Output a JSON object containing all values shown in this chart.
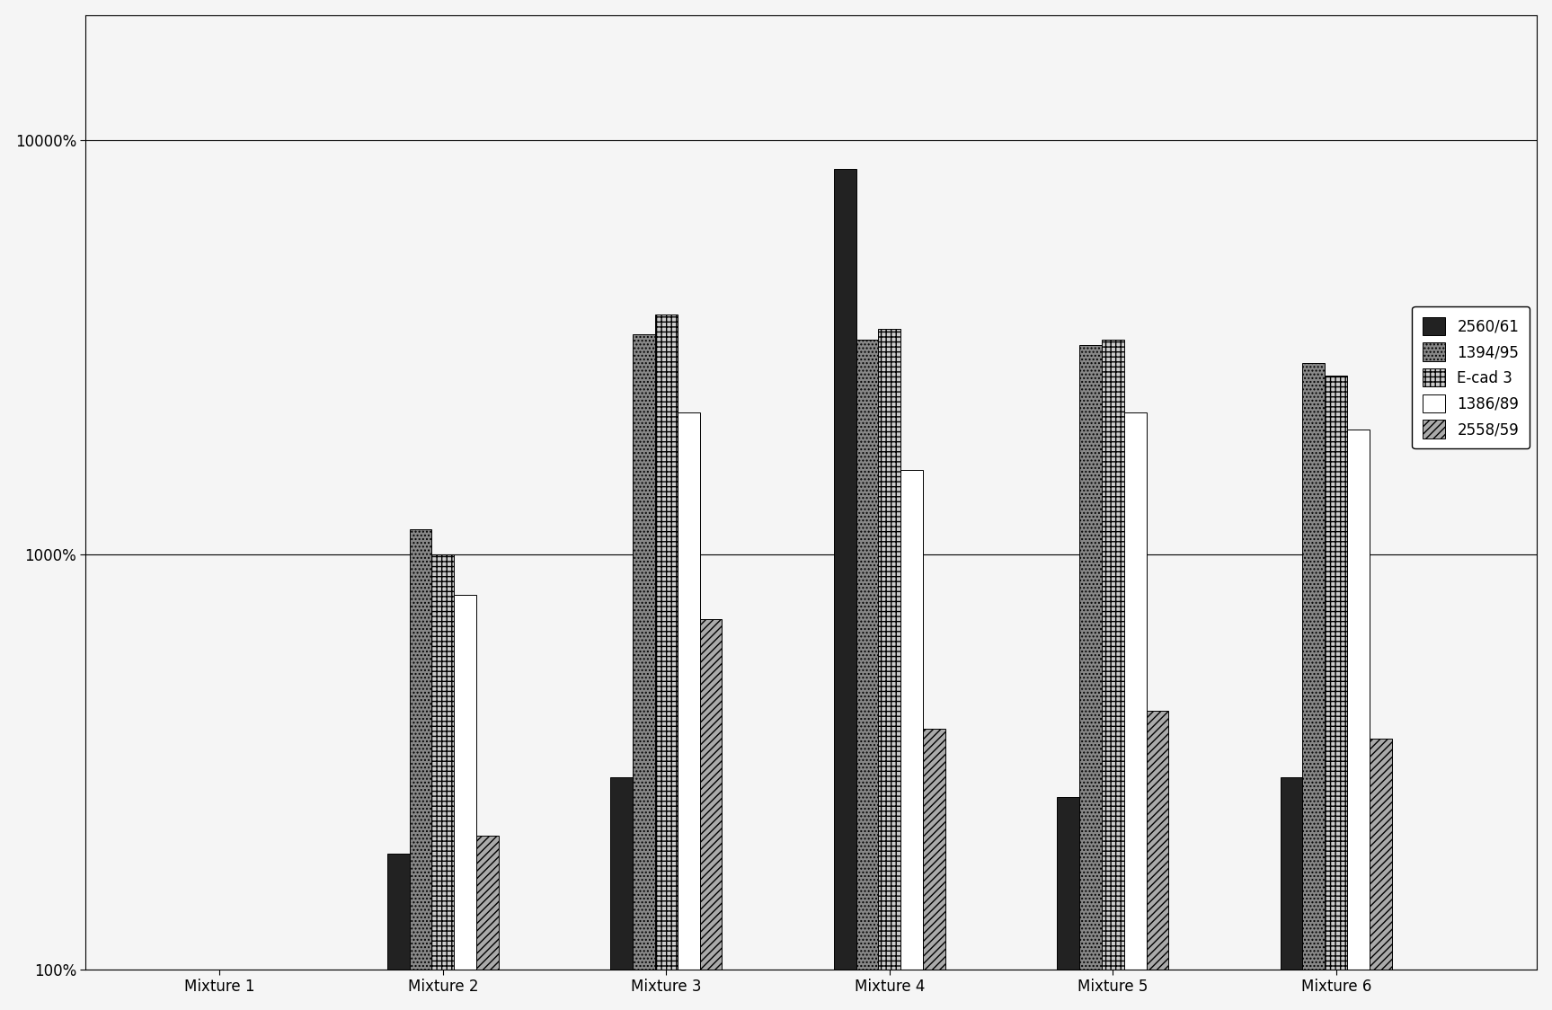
{
  "categories": [
    "Mixture 1",
    "Mixture 2",
    "Mixture 3",
    "Mixture 4",
    "Mixture 5",
    "Mixture 6"
  ],
  "series": {
    "2560/61": [
      null,
      190,
      290,
      8500,
      260,
      290
    ],
    "1394/95": [
      null,
      1150,
      3400,
      3300,
      3200,
      2900
    ],
    "E-cad 3": [
      null,
      1000,
      3800,
      3500,
      3300,
      2700
    ],
    "1386/89": [
      null,
      800,
      2200,
      1600,
      2200,
      2000
    ],
    "2558/59": [
      null,
      210,
      700,
      380,
      420,
      360
    ]
  },
  "series_order": [
    "2560/61",
    "1394/95",
    "E-cad 3",
    "1386/89",
    "2558/59"
  ],
  "color_map": {
    "2560/61": "#222222",
    "1394/95": "#888888",
    "E-cad 3": "#cccccc",
    "1386/89": "#ffffff",
    "2558/59": "#aaaaaa"
  },
  "hatch_map": {
    "2560/61": "",
    "1394/95": "....",
    "E-cad 3": "+++",
    "1386/89": "",
    "2558/59": "////"
  },
  "ylim": [
    100,
    20000
  ],
  "yticks": [
    100,
    1000,
    10000
  ],
  "ytick_labels": [
    "100%",
    "1000%",
    "10000%"
  ],
  "background_color": "#f5f5f5",
  "bar_width": 0.1,
  "legend_fontsize": 12,
  "tick_fontsize": 12,
  "figsize": [
    17.27,
    11.24
  ],
  "dpi": 100
}
